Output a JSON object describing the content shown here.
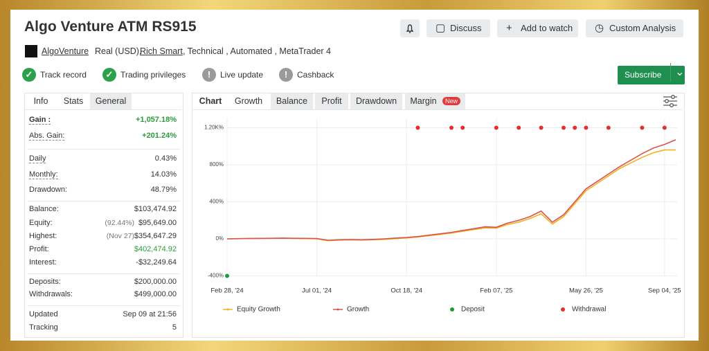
{
  "header": {
    "title": "Algo Venture ATM RS915",
    "buttons": [
      "Discuss",
      "Add to watch",
      "Custom Analysis"
    ],
    "author": "AlgoVenture",
    "account": "Real (USD),",
    "broker": "Rich Smart",
    "tags": ", Technical , Automated , MetaTrader 4",
    "badges": [
      {
        "label": "Track record",
        "status": "verified"
      },
      {
        "label": "Trading privileges",
        "status": "verified"
      },
      {
        "label": "Live update",
        "status": "missing"
      },
      {
        "label": "Cashback",
        "status": "missing"
      }
    ],
    "subscribe": "Subscribe"
  },
  "stats": {
    "tabs": [
      "Info",
      "Stats",
      "General"
    ],
    "groups": [
      [
        {
          "label": "Gain :",
          "value": "+1,057.18%",
          "color": "#2a9d3a"
        },
        {
          "label": "Abs. Gain:",
          "value": "+201.24%",
          "color": "#2a9d3a"
        }
      ],
      [
        {
          "label": "Daily",
          "value": "0.43%"
        },
        {
          "label": "Monthly:",
          "value": "14.03%"
        },
        {
          "label": "Drawdown:",
          "value": "48.79%"
        }
      ],
      [
        {
          "label": "Balance:",
          "value": "$103,474.92"
        },
        {
          "label": "Equity:",
          "note": "(92.44%)",
          "value": "$95,649.00"
        },
        {
          "label": "Highest:",
          "note": "(Nov 27)",
          "value": "$354,647.29"
        },
        {
          "label": "Profit:",
          "value": "$402,474.92",
          "color": "#2a9d3a"
        },
        {
          "label": "Interest:",
          "value": "-$32,249.64"
        }
      ],
      [
        {
          "label": "Deposits:",
          "value": "$200,000.00"
        },
        {
          "label": "Withdrawals:",
          "value": "$499,000.00"
        }
      ],
      [
        {
          "label": "Updated",
          "value": "Sep 09 at 21:56"
        },
        {
          "label": "Tracking",
          "value": "5"
        }
      ]
    ]
  },
  "chart_tabs": {
    "tabs": [
      "Chart",
      "Growth",
      "Balance",
      "Profit",
      "Drawdown",
      "Margin"
    ],
    "new_badge": "New"
  },
  "chart_data": {
    "type": "line",
    "categories": [
      "Feb 28, '24",
      null,
      null,
      null,
      null,
      null,
      null,
      null,
      "Jul 01, '24",
      null,
      null,
      null,
      null,
      null,
      null,
      null,
      "Oct 18, '24",
      null,
      null,
      null,
      null,
      null,
      null,
      null,
      "Feb 07, '25",
      null,
      null,
      null,
      null,
      null,
      null,
      null,
      "May 26, '25",
      null,
      null,
      null,
      null,
      null,
      null,
      "Sep 04, '25",
      null
    ],
    "ylim": [
      -400,
      1300
    ],
    "yticks": [
      {
        "value": 1200,
        "label": "1.20K%"
      },
      {
        "value": 800,
        "label": "800%"
      },
      {
        "value": 400,
        "label": "400%"
      },
      {
        "value": 0,
        "label": "0%"
      },
      {
        "value": -400,
        "label": "-400%"
      }
    ],
    "grid": true,
    "series": [
      {
        "name": "Equity Growth",
        "color": "#f2b01e",
        "type": "line",
        "values": [
          0,
          1,
          3,
          3,
          4,
          6,
          3,
          2,
          0,
          -20,
          -14,
          -12,
          -14,
          -10,
          -6,
          2,
          10,
          20,
          34,
          48,
          62,
          82,
          100,
          118,
          115,
          155,
          180,
          220,
          270,
          160,
          240,
          380,
          520,
          600,
          680,
          760,
          820,
          880,
          930,
          960,
          960
        ]
      },
      {
        "name": "Growth",
        "color": "#d9534f",
        "type": "line",
        "values": [
          0,
          2,
          4,
          5,
          6,
          8,
          6,
          5,
          3,
          -15,
          -10,
          -8,
          -10,
          -6,
          0,
          8,
          15,
          25,
          40,
          55,
          70,
          90,
          110,
          130,
          125,
          170,
          200,
          240,
          300,
          180,
          260,
          400,
          540,
          620,
          700,
          780,
          850,
          920,
          980,
          1020,
          1070
        ]
      },
      {
        "name": "Deposit",
        "color": "#1a9e3a",
        "type": "scatter",
        "values": [
          -400,
          null,
          null,
          null,
          null,
          null,
          null,
          null,
          null,
          null,
          null,
          null,
          null,
          null,
          null,
          null,
          null,
          null,
          null,
          null,
          null,
          null,
          null,
          null,
          null,
          null,
          null,
          null,
          null,
          null,
          null,
          null,
          null,
          null,
          null,
          null,
          null,
          null,
          null,
          null,
          null
        ]
      },
      {
        "name": "Withdrawal",
        "color": "#e03030",
        "type": "scatter",
        "values": [
          null,
          null,
          null,
          null,
          null,
          null,
          null,
          null,
          null,
          null,
          null,
          null,
          null,
          null,
          null,
          null,
          null,
          1200,
          null,
          null,
          1200,
          1200,
          null,
          null,
          1200,
          null,
          1200,
          null,
          1200,
          null,
          1200,
          1200,
          1200,
          null,
          1200,
          null,
          null,
          1200,
          null,
          1200,
          null
        ]
      }
    ]
  }
}
